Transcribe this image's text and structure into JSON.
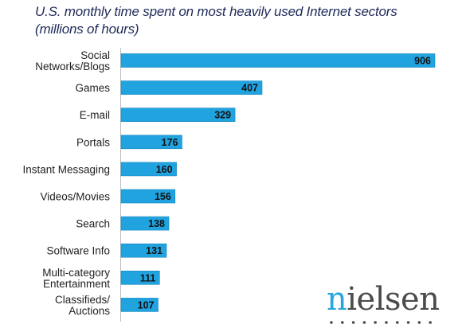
{
  "title": {
    "line1": "U.S. monthly time spent on most heavily used Internet sectors",
    "line2": "(millions of hours)"
  },
  "colors": {
    "bar": "#21a3e0",
    "bar_stroke": "#1687bd",
    "title": "#1f2a5a",
    "label": "#222222",
    "logo_gray": "#4b4b4b",
    "logo_blue": "#2aa5dd"
  },
  "chart_data": {
    "type": "bar",
    "orientation": "horizontal",
    "title": "U.S. monthly time spent on most heavily used Internet sectors (millions of hours)",
    "categories": [
      [
        "Social",
        "Networks/Blogs"
      ],
      [
        "Games"
      ],
      [
        "E-mail"
      ],
      [
        "Portals"
      ],
      [
        "Instant Messaging"
      ],
      [
        "Videos/Movies"
      ],
      [
        "Search"
      ],
      [
        "Software Info"
      ],
      [
        "Multi-category",
        "Entertainment"
      ],
      [
        "Classifieds/",
        "Auctions"
      ]
    ],
    "values": [
      906,
      407,
      329,
      176,
      160,
      156,
      138,
      131,
      111,
      107
    ],
    "xlim": [
      0,
      906
    ],
    "data_labels": true,
    "grid": false,
    "legend": "none"
  },
  "logo": {
    "text_first": "n",
    "text_rest": "ielsen",
    "dots": 10
  }
}
